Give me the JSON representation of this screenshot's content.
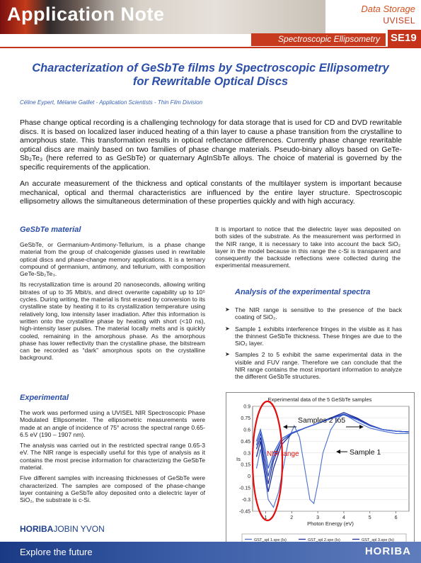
{
  "header": {
    "series": "Application Note",
    "topic_line1": "Data Storage",
    "topic_line2": "UVISEL",
    "technique": "Spectroscopic Ellipsometry",
    "code": "SE19"
  },
  "title_line1": "Characterization of GeSbTe films by Spectroscopic Ellipsometry",
  "title_line2": "for Rewritable Optical Discs",
  "authors": "Céline Eypert, Mélanie Gaillet  -  Application Scientists  - Thin Film Division",
  "intro": [
    "Phase change optical recording is a challenging technology for data storage that is used for CD and DVD rewritable discs. It is based on localized laser induced heating of a thin layer to cause a phase transition from the crystalline to amorphous state. This transformation results in optical reflectance differences. Currently phase change rewritable optical discs are mainly based on two families of phase change materials. Pseudo-binary alloys based on GeTe-Sb₂Te₃ (here referred to as GeSbTe) or quaternary AgInSbTe alloys. The choice of material is governed by the specific requirements of the application.",
    "An accurate measurement of the thickness and optical constants of the multilayer system is important because mechanical, optical and thermal characteristics are influenced by the entire layer structure. Spectroscopic ellipsometry allows the simultaneous determination of these properties quickly and with high accuracy."
  ],
  "gesbte": {
    "heading": "GeSbTe material",
    "p1": "GeSbTe, or Germanium-Antimony-Tellurium, is a phase change material from the group of chalcogenide glasses used in rewritable optical discs and phase-change memory applications. It is a ternary compound of germanium, antimony, and tellurium, with composition GeTe-Sb₂Te₃.",
    "p2": "Its recrystallization time is around 20 nanoseconds, allowing writing bitrates of up to 35 Mbit/s, and direct overwrite capability up to 10⁵ cycles. During writing, the material is first erased by conversion to its crystalline state by heating it to its crystallization temperature using relatively long, low intensity laser irradiation. After this information is written onto the crystalline phase by heating with short (<10 ns), high-intensity laser pulses. The material locally melts and is quickly cooled, remaining in the amorphous phase. As the amorphous phase has lower reflectivity than the crystalline phase, the bitstream can be recorded as “dark” amorphous spots on the crystalline background."
  },
  "experimental": {
    "heading": "Experimental",
    "p1": "The work was performed using a UVISEL NIR Spectroscopic Phase Modulated Ellipsometer. The ellipsometric measurements were made at an angle of incidence of 75° across the spectral range 0.65-6.5 eV (190 – 1907 nm).",
    "p2": "The analysis was carried out in the restricted spectral range 0.65-3 eV. The NIR range is especially useful for this type of analysis as it contains the most precise information for characterizing the GeSbTe material.",
    "p3": "Five different samples with increasing thicknesses of GeSbTe were characterized. The samples are composed of the phase-change layer containing a GeSbTe alloy deposited onto a dielectric layer of SiO₂, the substrate is c-Si."
  },
  "right_intro": "It is important to notice that the dielectric layer was deposited on both sides of the substrate. As the measurement was performed in the NIR range, it is necessary to take into account the back SiO₂ layer in the model because in this range the c-Si is transparent and consequently the backside reflections were collected during the experimental measurement.",
  "analysis": {
    "heading": "Analysis of the experimental spectra",
    "bullets": [
      "The NIR range is sensitive to the presence of the back coating of SiO₂.",
      "Sample 1 exhibits interference fringes in the visible as it has the thinnest GeSbTe thickness. These fringes are due to the SiO₂ layer.",
      "Samples 2 to 5 exhibit the same experimental data in the visible and FUV range. Therefore we can conclude that the NIR range contains the most important information to analyze the different GeSbTe structures."
    ]
  },
  "chart_data": {
    "type": "line",
    "title": "Experimental data of the 5 GeSbTe samples",
    "xlabel": "Photon Energy (eV)",
    "ylabel": "Is",
    "xlim": [
      0.5,
      6.5
    ],
    "ylim": [
      -0.45,
      0.9
    ],
    "xticks": [
      "1",
      "2",
      "3",
      "4",
      "5",
      "6"
    ],
    "yticks": [
      "0.9",
      "0.75",
      "0.6",
      "0.45",
      "0.3",
      "0.15",
      "0",
      "-0.15",
      "-0.3",
      "-0.45"
    ],
    "annotations": {
      "samples_2_5": "Samples 2 to5",
      "sample_1": "Sample 1",
      "nir": "NIR range"
    },
    "legend": [
      "GST_spl 1.spe (Is)",
      "GST_spl 2.spe (Is)",
      "GST_spl 3.spe (Is)",
      "GST_spl 4.spe (Is)",
      "GST_spl 5.spe (Is)"
    ],
    "series": [
      {
        "name": "GST_spl 1.spe (Is)",
        "x": [
          0.65,
          0.8,
          0.95,
          1.1,
          1.3,
          1.5,
          1.7,
          1.9,
          2.1,
          2.3,
          2.5,
          2.7,
          2.85,
          3.0,
          3.2,
          3.5,
          3.8,
          4.0,
          4.5,
          5.0,
          5.5,
          6.0,
          6.5
        ],
        "y": [
          0.1,
          0.35,
          0.05,
          -0.3,
          -0.4,
          -0.2,
          0.15,
          0.5,
          0.65,
          0.5,
          0.1,
          -0.3,
          -0.35,
          -0.1,
          0.3,
          0.6,
          0.75,
          0.8,
          0.7,
          0.62,
          0.58,
          0.55,
          0.55
        ]
      },
      {
        "name": "GST_spl 2.spe (Is)",
        "x": [
          0.65,
          0.8,
          0.95,
          1.1,
          1.3,
          1.6,
          2.0,
          2.5,
          3.0,
          3.5,
          4.0,
          4.5,
          5.0,
          5.5,
          6.0,
          6.5
        ],
        "y": [
          0.25,
          0.45,
          0.1,
          -0.2,
          0.1,
          0.4,
          0.55,
          0.62,
          0.68,
          0.75,
          0.82,
          0.75,
          0.66,
          0.6,
          0.58,
          0.57
        ]
      },
      {
        "name": "GST_spl 3.spe (Is)",
        "x": [
          0.65,
          0.8,
          0.95,
          1.1,
          1.3,
          1.6,
          2.0,
          2.5,
          3.0,
          3.5,
          4.0,
          4.5,
          5.0,
          5.5,
          6.0,
          6.5
        ],
        "y": [
          0.35,
          0.5,
          0.2,
          -0.1,
          0.2,
          0.45,
          0.55,
          0.62,
          0.68,
          0.75,
          0.8,
          0.74,
          0.65,
          0.6,
          0.58,
          0.57
        ]
      },
      {
        "name": "GST_spl 4.spe (Is)",
        "x": [
          0.65,
          0.8,
          0.95,
          1.1,
          1.3,
          1.6,
          2.0,
          2.5,
          3.0,
          3.5,
          4.0,
          4.5,
          5.0,
          5.5,
          6.0,
          6.5
        ],
        "y": [
          0.4,
          0.55,
          0.3,
          0.0,
          0.25,
          0.45,
          0.55,
          0.62,
          0.68,
          0.74,
          0.8,
          0.73,
          0.65,
          0.6,
          0.58,
          0.57
        ]
      },
      {
        "name": "GST_spl 5.spe (Is)",
        "x": [
          0.65,
          0.8,
          0.95,
          1.1,
          1.3,
          1.6,
          2.0,
          2.5,
          3.0,
          3.5,
          4.0,
          4.5,
          5.0,
          5.5,
          6.0,
          6.5
        ],
        "y": [
          0.45,
          0.6,
          0.4,
          0.1,
          0.3,
          0.48,
          0.56,
          0.62,
          0.68,
          0.74,
          0.79,
          0.73,
          0.65,
          0.6,
          0.58,
          0.57
        ]
      }
    ],
    "colors": [
      "#4a6fd0",
      "#1f2f9a",
      "#1f2f9a",
      "#3050c0",
      "#3a5fd0"
    ],
    "highlight_color": "#e01010"
  },
  "brand_left_bold": "HORIBA",
  "brand_left_rest": "JOBIN YVON",
  "footer_slogan": "Explore the future",
  "footer_brand": "HORIBA"
}
